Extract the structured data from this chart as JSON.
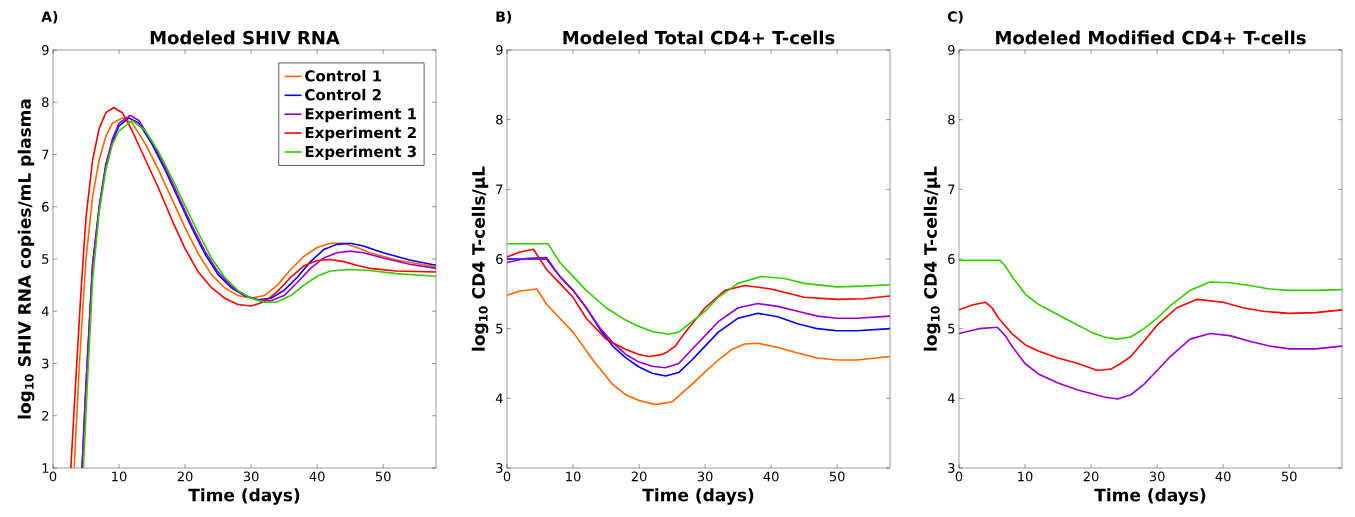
{
  "chart_data": [
    {
      "type": "line",
      "title": "Modeled SHIV RNA",
      "xlabel": "Time (days)",
      "ylabel": "log$_{10}$ SHIV RNA copies/mL plasma",
      "annotations": [
        "A)"
      ],
      "xlim": [
        0,
        58
      ],
      "ylim": [
        1,
        9
      ],
      "xticks": [
        0,
        10,
        20,
        30,
        40,
        50
      ],
      "yticks": [
        1,
        2,
        3,
        4,
        5,
        6,
        7,
        8,
        9
      ],
      "grid": false,
      "legend": "top right",
      "line_style": "solid",
      "marker": "none",
      "series": [
        {
          "name": "Control 1",
          "color": "#ff6600",
          "x": [
            3.2,
            4,
            5,
            6,
            7,
            8,
            9,
            10.5,
            12,
            14,
            16,
            18,
            20,
            22,
            24,
            26,
            28,
            30,
            32,
            34,
            36,
            38,
            40,
            42,
            44,
            46,
            48,
            52,
            58
          ],
          "values": [
            1,
            3.0,
            5.0,
            6.2,
            6.9,
            7.35,
            7.6,
            7.7,
            7.6,
            7.2,
            6.7,
            6.15,
            5.6,
            5.1,
            4.7,
            4.45,
            4.3,
            4.25,
            4.3,
            4.5,
            4.8,
            5.05,
            5.22,
            5.3,
            5.3,
            5.22,
            5.12,
            4.98,
            4.85
          ]
        },
        {
          "name": "Control 2",
          "color": "#0000ff",
          "x": [
            4.4,
            5,
            6,
            7,
            8,
            9,
            10,
            11.5,
            13,
            15,
            17,
            19,
            21,
            23,
            25,
            27,
            29,
            31,
            33,
            35,
            37,
            39,
            41,
            43,
            45,
            47,
            50,
            54,
            58
          ],
          "values": [
            1,
            2.6,
            4.9,
            6.0,
            6.8,
            7.25,
            7.55,
            7.7,
            7.6,
            7.2,
            6.7,
            6.15,
            5.6,
            5.1,
            4.7,
            4.45,
            4.3,
            4.22,
            4.25,
            4.4,
            4.65,
            4.95,
            5.18,
            5.28,
            5.3,
            5.25,
            5.12,
            4.98,
            4.88
          ]
        },
        {
          "name": "Experiment 1",
          "color": "#9900cc",
          "x": [
            4.4,
            5,
            6,
            7,
            8,
            9,
            10,
            11.7,
            13,
            15,
            17,
            19,
            21,
            23,
            25,
            27,
            29,
            31,
            33,
            35,
            37,
            39,
            41,
            43,
            45,
            47,
            50,
            54,
            58
          ],
          "values": [
            1,
            2.6,
            4.9,
            6.0,
            6.8,
            7.3,
            7.6,
            7.75,
            7.65,
            7.25,
            6.75,
            6.2,
            5.65,
            5.15,
            4.75,
            4.48,
            4.3,
            4.22,
            4.2,
            4.3,
            4.55,
            4.82,
            5.02,
            5.12,
            5.15,
            5.12,
            5.02,
            4.9,
            4.82
          ]
        },
        {
          "name": "Experiment 2",
          "color": "#ff0000",
          "x": [
            2.7,
            3.5,
            4.3,
            5,
            6,
            7,
            8,
            9.2,
            10.5,
            12,
            14,
            16,
            18,
            20,
            22,
            24,
            26,
            28,
            30,
            32,
            34,
            36,
            38,
            40,
            42,
            44,
            46,
            48,
            52,
            58
          ],
          "values": [
            1,
            2.8,
            4.5,
            5.8,
            6.9,
            7.5,
            7.8,
            7.9,
            7.8,
            7.45,
            6.9,
            6.35,
            5.75,
            5.2,
            4.75,
            4.45,
            4.25,
            4.13,
            4.1,
            4.18,
            4.38,
            4.65,
            4.87,
            4.97,
            4.99,
            4.95,
            4.88,
            4.82,
            4.77,
            4.75
          ]
        },
        {
          "name": "Experiment 3",
          "color": "#33cc00",
          "x": [
            4.6,
            5.2,
            6,
            7,
            8,
            9,
            10,
            12,
            14,
            16,
            18,
            20,
            22,
            24,
            26,
            28,
            30,
            32,
            34,
            36,
            38,
            40,
            42,
            45,
            48,
            52,
            58
          ],
          "values": [
            1,
            2.6,
            4.6,
            5.9,
            6.7,
            7.2,
            7.45,
            7.65,
            7.45,
            7.05,
            6.55,
            6.02,
            5.5,
            5.02,
            4.65,
            4.4,
            4.25,
            4.17,
            4.18,
            4.3,
            4.5,
            4.67,
            4.77,
            4.8,
            4.78,
            4.72,
            4.67
          ]
        }
      ]
    },
    {
      "type": "line",
      "title": "Modeled Total CD4+ T-cells",
      "xlabel": "Time (days)",
      "ylabel": "log$_{10}$ CD4 T-cells/μL",
      "annotations": [
        "B)"
      ],
      "xlim": [
        0,
        58
      ],
      "ylim": [
        3,
        9
      ],
      "xticks": [
        0,
        10,
        20,
        30,
        40,
        50
      ],
      "yticks": [
        3,
        4,
        5,
        6,
        7,
        8,
        9
      ],
      "grid": false,
      "line_style": "solid",
      "marker": "none",
      "series": [
        {
          "color": "#ff6600",
          "x": [
            0,
            2,
            4.5,
            6,
            8,
            10,
            13,
            16,
            18,
            20,
            22.5,
            25,
            28,
            30,
            32,
            34,
            36,
            38,
            41,
            44,
            47,
            50,
            53,
            58
          ],
          "values": [
            5.48,
            5.54,
            5.57,
            5.35,
            5.15,
            4.95,
            4.55,
            4.2,
            4.05,
            3.97,
            3.91,
            3.95,
            4.2,
            4.38,
            4.55,
            4.7,
            4.78,
            4.79,
            4.73,
            4.65,
            4.58,
            4.55,
            4.55,
            4.6
          ]
        },
        {
          "color": "#0000ff",
          "x": [
            0,
            3,
            6,
            8,
            10,
            12,
            14,
            16,
            18,
            20,
            22,
            24,
            26,
            28,
            30,
            32,
            35,
            38,
            41,
            44,
            47,
            50,
            53,
            58
          ],
          "values": [
            6.0,
            6.0,
            6.0,
            5.75,
            5.55,
            5.3,
            5.0,
            4.75,
            4.58,
            4.45,
            4.36,
            4.32,
            4.37,
            4.55,
            4.75,
            4.95,
            5.15,
            5.22,
            5.17,
            5.07,
            5.0,
            4.97,
            4.97,
            5.0
          ]
        },
        {
          "color": "#9900cc",
          "x": [
            0,
            3,
            6,
            8,
            10,
            12,
            14,
            16,
            18,
            20,
            22,
            24,
            26,
            28,
            30,
            32,
            35,
            38,
            41,
            44,
            47,
            50,
            53,
            58
          ],
          "values": [
            5.95,
            6.01,
            6.02,
            5.75,
            5.55,
            5.3,
            5.02,
            4.8,
            4.63,
            4.52,
            4.46,
            4.44,
            4.5,
            4.7,
            4.9,
            5.1,
            5.3,
            5.36,
            5.32,
            5.25,
            5.18,
            5.15,
            5.15,
            5.18
          ]
        },
        {
          "color": "#ff0000",
          "x": [
            0,
            2,
            4,
            6,
            8,
            10,
            12,
            15,
            18,
            20,
            21.5,
            23,
            24,
            25.5,
            27,
            30,
            33,
            36,
            40,
            45,
            50,
            54,
            58
          ],
          "values": [
            6.03,
            6.1,
            6.14,
            5.85,
            5.65,
            5.45,
            5.15,
            4.85,
            4.7,
            4.63,
            4.6,
            4.62,
            4.65,
            4.75,
            4.95,
            5.3,
            5.55,
            5.62,
            5.57,
            5.45,
            5.42,
            5.43,
            5.47
          ]
        },
        {
          "color": "#33cc00",
          "x": [
            0,
            3,
            6.2,
            8,
            10,
            12,
            15,
            18,
            20,
            22,
            24.5,
            26,
            28,
            30,
            32,
            35,
            38.5,
            42,
            45,
            50,
            54,
            58
          ],
          "values": [
            6.22,
            6.22,
            6.22,
            5.95,
            5.75,
            5.55,
            5.3,
            5.12,
            5.03,
            4.96,
            4.92,
            4.95,
            5.1,
            5.25,
            5.45,
            5.65,
            5.75,
            5.72,
            5.65,
            5.6,
            5.61,
            5.63
          ]
        }
      ]
    },
    {
      "type": "line",
      "title": "Modeled Modified CD4+ T-cells",
      "xlabel": "Time (days)",
      "ylabel": "log$_{10}$ CD4 T-cells/μL",
      "annotations": [
        "C)"
      ],
      "xlim": [
        0,
        58
      ],
      "ylim": [
        3,
        9
      ],
      "xticks": [
        0,
        10,
        20,
        30,
        40,
        50
      ],
      "yticks": [
        3,
        4,
        5,
        6,
        7,
        8,
        9
      ],
      "grid": false,
      "line_style": "solid",
      "marker": "none",
      "series": [
        {
          "color": "#9900cc",
          "x": [
            0,
            3,
            5.8,
            7,
            8,
            10,
            12,
            15,
            18,
            20,
            22,
            24,
            26,
            28,
            30,
            32,
            35,
            38,
            41,
            44,
            47,
            50,
            54,
            58
          ],
          "values": [
            4.93,
            5.0,
            5.02,
            4.9,
            4.75,
            4.5,
            4.35,
            4.22,
            4.12,
            4.07,
            4.02,
            3.99,
            4.05,
            4.2,
            4.4,
            4.6,
            4.85,
            4.93,
            4.9,
            4.82,
            4.75,
            4.71,
            4.71,
            4.75
          ]
        },
        {
          "color": "#ff0000",
          "x": [
            0,
            2,
            4,
            5,
            6,
            8,
            10,
            12,
            15,
            18,
            21,
            23,
            24.5,
            26,
            28,
            30,
            33,
            36,
            40,
            43,
            46,
            50,
            54,
            58
          ],
          "values": [
            5.27,
            5.34,
            5.38,
            5.3,
            5.15,
            4.93,
            4.77,
            4.68,
            4.58,
            4.5,
            4.4,
            4.42,
            4.5,
            4.6,
            4.82,
            5.05,
            5.3,
            5.42,
            5.38,
            5.3,
            5.25,
            5.22,
            5.23,
            5.27
          ]
        },
        {
          "color": "#33cc00",
          "x": [
            0,
            3,
            6.2,
            7,
            8,
            10,
            12,
            14,
            17,
            20,
            22,
            24,
            26,
            28,
            30,
            32,
            35,
            38,
            41,
            44,
            47,
            50,
            54,
            58
          ],
          "values": [
            5.98,
            5.98,
            5.98,
            5.9,
            5.75,
            5.5,
            5.35,
            5.25,
            5.1,
            4.95,
            4.88,
            4.85,
            4.88,
            5.0,
            5.15,
            5.33,
            5.55,
            5.67,
            5.66,
            5.62,
            5.57,
            5.55,
            5.55,
            5.56
          ]
        }
      ]
    }
  ]
}
